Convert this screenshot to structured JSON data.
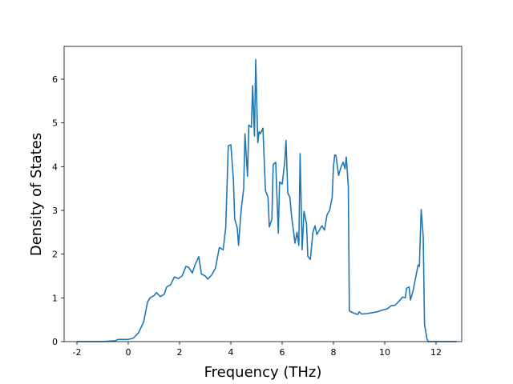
{
  "chart_data": {
    "type": "line",
    "x_label": "Frequency (THz)",
    "y_label": "Density of States",
    "x": [
      -2,
      -1,
      -0.5,
      -0.4,
      0,
      0.2,
      0.4,
      0.6,
      0.75,
      0.85,
      1.0,
      1.1,
      1.25,
      1.4,
      1.5,
      1.65,
      1.8,
      1.95,
      2.1,
      2.25,
      2.35,
      2.5,
      2.6,
      2.75,
      2.85,
      3.0,
      3.1,
      3.25,
      3.4,
      3.55,
      3.7,
      3.8,
      3.9,
      4.0,
      4.1,
      4.15,
      4.25,
      4.3,
      4.4,
      4.5,
      4.55,
      4.65,
      4.7,
      4.8,
      4.85,
      4.92,
      4.97,
      5.05,
      5.1,
      5.15,
      5.25,
      5.35,
      5.45,
      5.5,
      5.6,
      5.65,
      5.75,
      5.85,
      5.9,
      6.0,
      6.1,
      6.15,
      6.22,
      6.3,
      6.38,
      6.45,
      6.5,
      6.58,
      6.65,
      6.7,
      6.78,
      6.85,
      6.95,
      7.0,
      7.1,
      7.2,
      7.28,
      7.35,
      7.45,
      7.55,
      7.65,
      7.75,
      7.85,
      7.95,
      8.0,
      8.05,
      8.1,
      8.2,
      8.3,
      8.38,
      8.45,
      8.5,
      8.58,
      8.62,
      8.8,
      8.95,
      9.0,
      9.1,
      9.3,
      9.5,
      9.7,
      9.9,
      10.1,
      10.25,
      10.4,
      10.55,
      10.7,
      10.8,
      10.85,
      10.95,
      11.0,
      11.1,
      11.2,
      11.3,
      11.35,
      11.42,
      11.5,
      11.55,
      11.65,
      11.7,
      12.0,
      12.8
    ],
    "series": [
      {
        "color": "#1f77b4",
        "values": [
          0,
          0,
          0.02,
          0.05,
          0.05,
          0.08,
          0.2,
          0.45,
          0.9,
          1.0,
          1.05,
          1.12,
          1.03,
          1.08,
          1.25,
          1.3,
          1.48,
          1.44,
          1.5,
          1.72,
          1.7,
          1.57,
          1.75,
          1.94,
          1.55,
          1.5,
          1.43,
          1.52,
          1.68,
          2.15,
          2.1,
          2.6,
          4.48,
          4.5,
          3.7,
          2.8,
          2.6,
          2.2,
          3.0,
          3.5,
          4.75,
          3.78,
          4.95,
          4.9,
          5.85,
          4.7,
          6.45,
          4.55,
          4.8,
          4.75,
          4.88,
          3.45,
          3.3,
          2.62,
          2.8,
          4.05,
          4.1,
          2.48,
          3.65,
          3.6,
          4.1,
          4.6,
          3.4,
          3.3,
          2.8,
          2.5,
          2.25,
          2.5,
          2.2,
          4.3,
          2.1,
          2.98,
          2.7,
          1.95,
          1.88,
          2.5,
          2.65,
          2.45,
          2.55,
          2.65,
          2.55,
          2.9,
          3.0,
          3.3,
          4.0,
          4.27,
          4.25,
          3.8,
          4.0,
          4.1,
          3.95,
          4.22,
          3.55,
          0.7,
          0.65,
          0.62,
          0.68,
          0.63,
          0.64,
          0.66,
          0.68,
          0.72,
          0.75,
          0.82,
          0.83,
          0.92,
          1.02,
          1.0,
          1.22,
          1.25,
          0.95,
          1.15,
          1.45,
          1.75,
          1.72,
          3.02,
          2.4,
          0.4,
          0.05,
          0,
          0,
          0
        ]
      }
    ],
    "xlim": [
      -2.5,
      13.0
    ],
    "ylim": [
      0,
      6.75
    ],
    "xticks": [
      -2,
      0,
      2,
      4,
      6,
      8,
      10,
      12
    ],
    "yticks": [
      0,
      1,
      2,
      3,
      4,
      5,
      6
    ],
    "grid": false
  }
}
